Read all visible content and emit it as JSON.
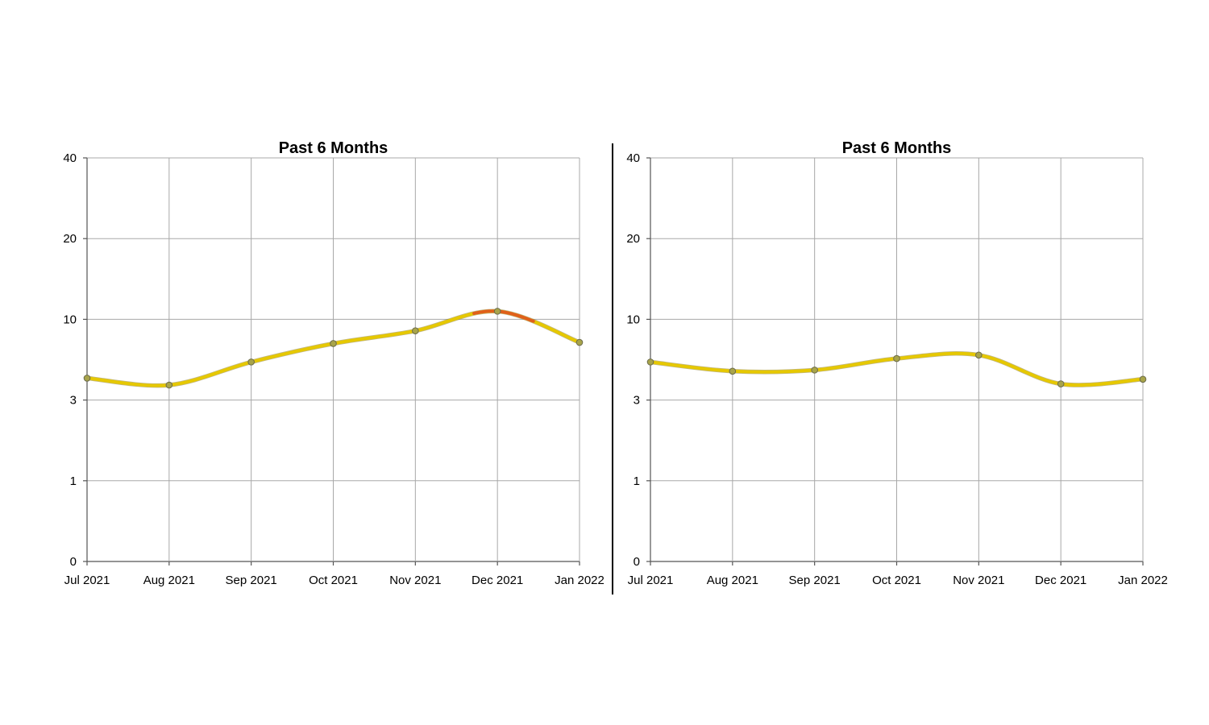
{
  "chart_data": [
    {
      "type": "line",
      "title": "Past 6 Months",
      "xlabel": "",
      "ylabel": "",
      "x": [
        "Jul 2021",
        "Aug 2021",
        "Sep 2021",
        "Oct 2021",
        "Nov 2021",
        "Dec 2021",
        "Jan 2022"
      ],
      "y_ticks": [
        0,
        1,
        3,
        10,
        20,
        40
      ],
      "y_scale": "piecewise",
      "grid": true,
      "legend": "none",
      "series": [
        {
          "values": [
            4.9,
            4.3,
            6.3,
            7.9,
            9.0,
            11.0,
            8.0
          ],
          "color": "#e6c800",
          "highlight": {
            "from": "Nov 2021",
            "to": "Dec 2021",
            "color": "#e0601a"
          }
        }
      ]
    },
    {
      "type": "line",
      "title": "Past 6 Months",
      "xlabel": "",
      "ylabel": "",
      "x": [
        "Jul 2021",
        "Aug 2021",
        "Sep 2021",
        "Oct 2021",
        "Nov 2021",
        "Dec 2021",
        "Jan 2022"
      ],
      "y_ticks": [
        0,
        1,
        3,
        10,
        20,
        40
      ],
      "y_scale": "piecewise",
      "grid": true,
      "legend": "none",
      "series": [
        {
          "values": [
            6.3,
            5.5,
            5.6,
            6.6,
            6.9,
            4.4,
            4.8
          ],
          "color": "#e6c800"
        }
      ]
    }
  ]
}
